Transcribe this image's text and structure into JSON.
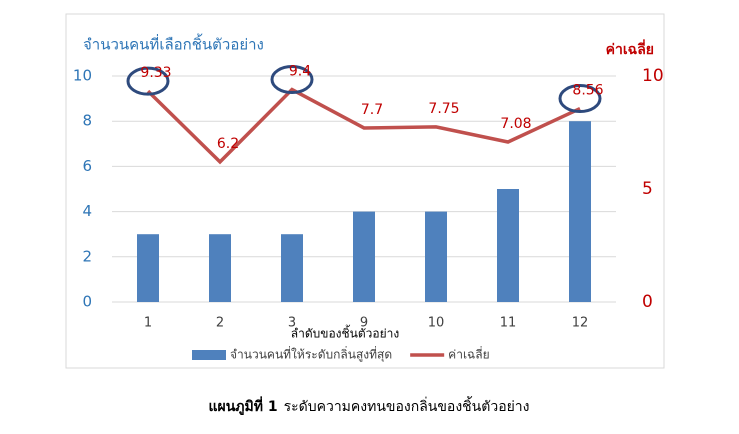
{
  "chart_data": {
    "type": "bar-line",
    "y_title": "จำนวนคนที่เลือกชิ้นตัวอย่าง",
    "y2_title": "ค่าเฉลี่ย",
    "x_title": "ลำดับของชิ้นตัวอย่าง",
    "categories": [
      "1",
      "2",
      "3",
      "9",
      "10",
      "11",
      "12"
    ],
    "series": [
      {
        "name": "จำนวนคนที่ให้ระดับกลิ่นสูงที่สุด",
        "type": "bar",
        "color": "#4f81bd",
        "values": [
          3,
          3,
          3,
          4,
          4,
          5,
          8
        ]
      },
      {
        "name": "ค่าเฉลี่ย",
        "type": "line",
        "axis": "y2",
        "color": "#c0504d",
        "values": [
          9.33,
          6.2,
          9.4,
          7.7,
          7.75,
          7.08,
          8.56
        ],
        "highlight_points": [
          0,
          2,
          6
        ],
        "highlight_color": "#2e4a7d"
      }
    ],
    "ylim": [
      0,
      10
    ],
    "yticks": [
      0,
      2,
      4,
      6,
      8,
      10
    ],
    "y2lim": [
      0,
      10
    ],
    "y2ticks": [
      0,
      5,
      10
    ],
    "grid": true,
    "legend": "bottom",
    "caption_label": "แผนภูมิที่ 1",
    "caption": "ระดับความคงทนของกลิ่นของชิ้นตัวอย่าง"
  }
}
